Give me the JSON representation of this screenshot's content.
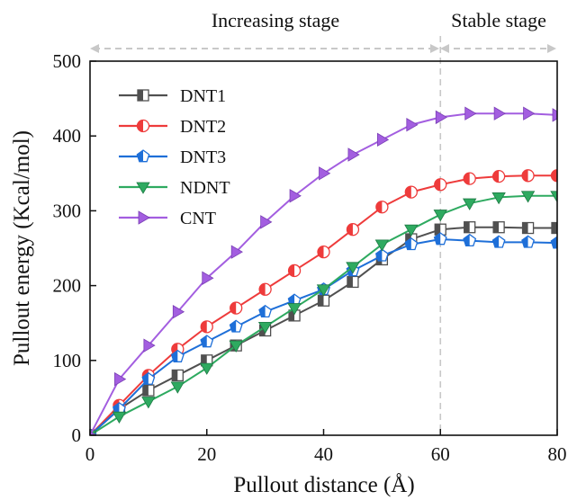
{
  "chart_data": {
    "type": "line",
    "xlabel": "Pullout distance (Å)",
    "ylabel": "Pullout energy (Kcal/mol)",
    "xlim": [
      0,
      80
    ],
    "ylim": [
      0,
      500
    ],
    "xticks": [
      0,
      20,
      40,
      60,
      80
    ],
    "yticks": [
      0,
      100,
      200,
      300,
      400,
      500
    ],
    "grid": false,
    "legend_position": "top-left",
    "annotations": {
      "increasing": "Increasing stage",
      "stable": "Stable stage",
      "divider_x": 60
    },
    "series": [
      {
        "name": "DNT1",
        "marker": "square-half",
        "color": "#505050",
        "x": [
          0,
          5,
          10,
          15,
          20,
          25,
          30,
          35,
          40,
          45,
          50,
          55,
          60,
          65,
          70,
          75,
          80
        ],
        "y": [
          0,
          35,
          60,
          80,
          100,
          120,
          140,
          160,
          180,
          205,
          235,
          262,
          275,
          278,
          278,
          277,
          277
        ]
      },
      {
        "name": "DNT2",
        "marker": "circle-half",
        "color": "#ee3b3b",
        "x": [
          0,
          5,
          10,
          15,
          20,
          25,
          30,
          35,
          40,
          45,
          50,
          55,
          60,
          65,
          70,
          75,
          80
        ],
        "y": [
          0,
          40,
          80,
          115,
          145,
          170,
          195,
          220,
          245,
          275,
          305,
          325,
          335,
          343,
          346,
          347,
          347
        ]
      },
      {
        "name": "DNT3",
        "marker": "pentagon-half",
        "color": "#1e6fd8",
        "x": [
          0,
          5,
          10,
          15,
          20,
          25,
          30,
          35,
          40,
          45,
          50,
          55,
          60,
          65,
          70,
          75,
          80
        ],
        "y": [
          0,
          35,
          75,
          105,
          125,
          145,
          165,
          180,
          195,
          220,
          240,
          255,
          262,
          260,
          258,
          258,
          257
        ]
      },
      {
        "name": "NDNT",
        "marker": "triangle-down",
        "color": "#2eaa60",
        "x": [
          0,
          5,
          10,
          15,
          20,
          25,
          30,
          35,
          40,
          45,
          50,
          55,
          60,
          65,
          70,
          75,
          80
        ],
        "y": [
          0,
          25,
          45,
          65,
          90,
          120,
          145,
          170,
          195,
          225,
          255,
          275,
          295,
          310,
          318,
          320,
          320
        ]
      },
      {
        "name": "CNT",
        "marker": "triangle-right",
        "color": "#a35ee0",
        "x": [
          0,
          5,
          10,
          15,
          20,
          25,
          30,
          35,
          40,
          45,
          50,
          55,
          60,
          65,
          70,
          75,
          80
        ],
        "y": [
          0,
          75,
          120,
          165,
          210,
          245,
          285,
          320,
          350,
          375,
          395,
          415,
          425,
          430,
          430,
          430,
          428
        ]
      }
    ]
  }
}
